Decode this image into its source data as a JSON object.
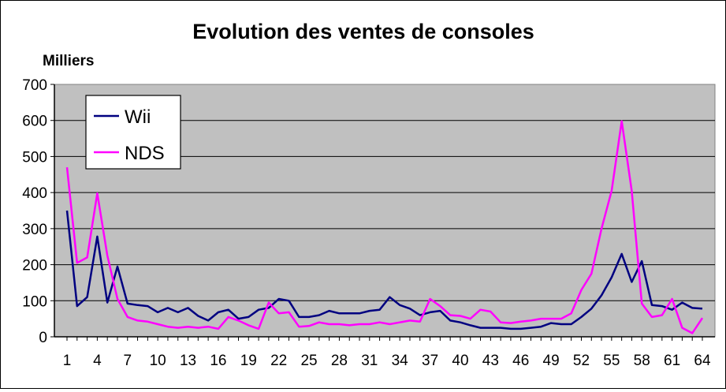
{
  "chart_data": {
    "type": "line",
    "title": "Evolution des ventes de consoles",
    "ylabel": "Milliers",
    "xlabel": "",
    "ylim": [
      0,
      700
    ],
    "yticks": [
      0,
      100,
      200,
      300,
      400,
      500,
      600,
      700
    ],
    "xlim": [
      1,
      64
    ],
    "xticks": [
      1,
      4,
      7,
      10,
      13,
      16,
      19,
      22,
      25,
      28,
      31,
      34,
      37,
      40,
      43,
      46,
      49,
      52,
      55,
      58,
      61,
      64
    ],
    "grid": "horizontal",
    "legend": "top-left",
    "plot_background": "#c0c0c0",
    "x": [
      1,
      2,
      3,
      4,
      5,
      6,
      7,
      8,
      9,
      10,
      11,
      12,
      13,
      14,
      15,
      16,
      17,
      18,
      19,
      20,
      21,
      22,
      23,
      24,
      25,
      26,
      27,
      28,
      29,
      30,
      31,
      32,
      33,
      34,
      35,
      36,
      37,
      38,
      39,
      40,
      41,
      42,
      43,
      44,
      45,
      46,
      47,
      48,
      49,
      50,
      51,
      52,
      53,
      54,
      55,
      56,
      57,
      58,
      59,
      60,
      61,
      62,
      63,
      64
    ],
    "series": [
      {
        "name": "Wii",
        "color": "#000080",
        "values": [
          350,
          85,
          110,
          278,
          95,
          195,
          92,
          88,
          85,
          68,
          80,
          68,
          80,
          58,
          45,
          68,
          75,
          50,
          55,
          75,
          80,
          105,
          100,
          55,
          55,
          60,
          72,
          65,
          65,
          65,
          72,
          75,
          110,
          88,
          78,
          60,
          68,
          72,
          45,
          40,
          32,
          25,
          25,
          25,
          22,
          22,
          25,
          28,
          38,
          35,
          35,
          55,
          78,
          115,
          165,
          230,
          152,
          210,
          88,
          85,
          75,
          95,
          80,
          78
        ]
      },
      {
        "name": "NDS",
        "color": "#ff00ff",
        "values": [
          470,
          205,
          220,
          398,
          225,
          105,
          55,
          45,
          42,
          35,
          28,
          25,
          28,
          25,
          28,
          22,
          55,
          45,
          32,
          22,
          95,
          65,
          68,
          28,
          30,
          40,
          35,
          35,
          32,
          35,
          35,
          40,
          35,
          40,
          45,
          42,
          105,
          85,
          60,
          58,
          50,
          75,
          70,
          40,
          38,
          42,
          45,
          50,
          50,
          50,
          65,
          130,
          175,
          300,
          405,
          598,
          405,
          92,
          55,
          60,
          105,
          25,
          10,
          52
        ]
      }
    ]
  }
}
